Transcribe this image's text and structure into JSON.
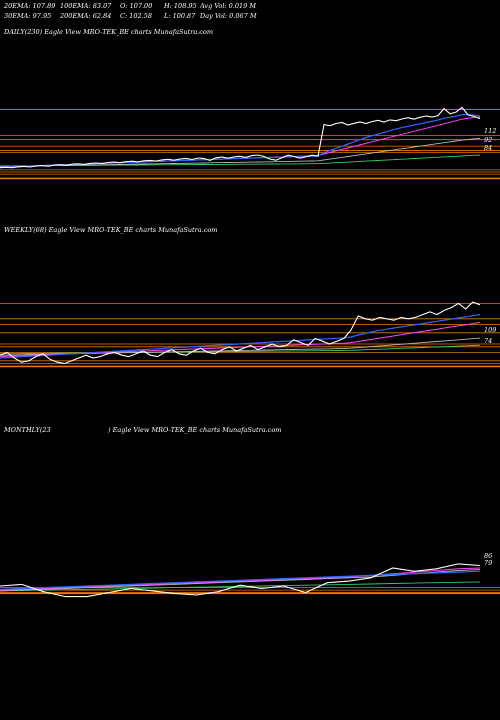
{
  "header": {
    "row1": {
      "ema20": "20EMA: 107.89",
      "ema100": "100EMA: 83.07",
      "open": "O: 107.00",
      "high": "H: 108.95",
      "avg_vol": "Avg Vol: 0.019 M"
    },
    "row2": {
      "ema30": "30EMA: 97.95",
      "ema200": "200EMA: 62.84",
      "close": "C: 102.58",
      "low": "L: 100.87",
      "day_vol": "Day Vol: 0.067 M"
    }
  },
  "panels": {
    "daily": {
      "title": "DAILY(230) Eagle   View  MRO-TEK_BE charts MunafaSutra.com"
    },
    "weekly": {
      "title": "WEEKLY(68) Eagle   View  MRO-TEK_BE charts MunafaSutra.com"
    },
    "monthly": {
      "title": "MONTHLY(23",
      "title_rest": ") Eagle   View  MRO-TEK_BE charts MunafaSutra.com"
    }
  },
  "colors": {
    "background": "#000000",
    "price": "#ffffff",
    "ema_blue": "#3366ff",
    "ema_magenta": "#ff44ff",
    "ema_grey": "#b8b8b8",
    "ema_green": "#33cc66",
    "support_orange": "#e07800"
  },
  "chart_data": [
    {
      "type": "line",
      "name": "daily",
      "ylim": [
        70,
        135
      ],
      "x": [
        0,
        1,
        2,
        3,
        4,
        5,
        6,
        7,
        8,
        9,
        10,
        11,
        12,
        13,
        14,
        15,
        16,
        17,
        18,
        19,
        20,
        21,
        22,
        23,
        24,
        25,
        26,
        27,
        28,
        29,
        30,
        31,
        32,
        33,
        34,
        35,
        36,
        37,
        38,
        39,
        40,
        41,
        42,
        43,
        44,
        45,
        46,
        47,
        48,
        49,
        50,
        51,
        52,
        53,
        54,
        55,
        56,
        57,
        58,
        59,
        60,
        61,
        62,
        63,
        64,
        65,
        66,
        67,
        68,
        69,
        70,
        71,
        72,
        73,
        74,
        75,
        76,
        77,
        78,
        79,
        80
      ],
      "series": [
        {
          "values": [
            85,
            85.2,
            85,
            85.4,
            85.6,
            85.3,
            85.8,
            86,
            85.7,
            86.2,
            86.4,
            86.1,
            86.6,
            86.8,
            86.5,
            87,
            87.2,
            86.9,
            87.4,
            87.6,
            87.3,
            87.8,
            88,
            87.7,
            88.2,
            88.4,
            88.1,
            88.6,
            88.9,
            88.5,
            89,
            89.3,
            88.8,
            89.5,
            89.2,
            88.4,
            89.6,
            89.9,
            89.4,
            90,
            90.3,
            89.8,
            90.6,
            90.9,
            90.2,
            89,
            88.5,
            89.6,
            90.8,
            90.2,
            89.4,
            90.1,
            90.8,
            90.4,
            105,
            104.5,
            105.5,
            106,
            104.8,
            105.6,
            106.2,
            105.5,
            106.4,
            107,
            106.2,
            107.2,
            106.8,
            107.6,
            108.2,
            107.5,
            108.4,
            109,
            108.5,
            109.2,
            112.5,
            110,
            110.8,
            113,
            109.5,
            108.8,
            107.8
          ]
        },
        {
          "values": [
            85.2,
            85.3,
            85.4,
            85.5,
            85.6,
            85.7,
            85.8,
            85.9,
            86,
            86.1,
            86.2,
            86.3,
            86.4,
            86.5,
            86.6,
            86.8,
            86.9,
            87,
            87.1,
            87.2,
            87.3,
            87.4,
            87.5,
            87.6,
            87.7,
            87.8,
            87.9,
            88,
            88.1,
            88.2,
            88.3,
            88.4,
            88.5,
            88.6,
            88.7,
            88.8,
            88.9,
            89,
            89.1,
            89.2,
            89.3,
            89.4,
            89.5,
            89.6,
            89.7,
            89.8,
            89.8,
            89.9,
            90,
            90.1,
            90.1,
            90.2,
            90.3,
            90.4,
            92,
            93,
            94,
            95,
            96,
            97,
            98,
            99,
            99.8,
            100.6,
            101.4,
            102.2,
            102.9,
            103.6,
            104.2,
            104.8,
            105.4,
            106,
            106.6,
            107.2,
            108,
            108.4,
            108.9,
            109.6,
            109.6,
            109.4,
            109
          ]
        },
        {
          "values": [
            85.3,
            85.4,
            85.5,
            85.6,
            85.7,
            85.8,
            85.9,
            86,
            86.1,
            86.2,
            86.3,
            86.4,
            86.5,
            86.6,
            86.7,
            86.8,
            86.9,
            87,
            87.1,
            87.2,
            87.3,
            87.4,
            87.5,
            87.6,
            87.7,
            87.8,
            87.9,
            88,
            88.1,
            88.2,
            88.3,
            88.4,
            88.5,
            88.6,
            88.7,
            88.8,
            88.9,
            89,
            89.1,
            89.2,
            89.3,
            89.4,
            89.5,
            89.6,
            89.7,
            89.8,
            89.9,
            90,
            90.1,
            90.2,
            90.3,
            90.4,
            90.5,
            90.6,
            91.4,
            92.1,
            92.8,
            93.5,
            94.2,
            94.9,
            95.6,
            96.3,
            97,
            97.7,
            98.4,
            99.1,
            99.8,
            100.5,
            101.2,
            101.9,
            102.6,
            103.3,
            104,
            104.7,
            105.4,
            106.1,
            106.8,
            107.5,
            108,
            108.3,
            108.5
          ]
        },
        {
          "values": [
            85.5,
            85.55,
            85.6,
            85.65,
            85.7,
            85.75,
            85.8,
            85.85,
            85.9,
            85.95,
            86,
            86.05,
            86.1,
            86.15,
            86.2,
            86.25,
            86.3,
            86.35,
            86.4,
            86.45,
            86.5,
            86.55,
            86.6,
            86.65,
            86.7,
            86.75,
            86.8,
            86.85,
            86.9,
            86.95,
            87,
            87.05,
            87.1,
            87.15,
            87.2,
            87.25,
            87.3,
            87.35,
            87.4,
            87.45,
            87.5,
            87.55,
            87.6,
            87.65,
            87.7,
            87.75,
            87.8,
            87.85,
            87.9,
            87.95,
            88,
            88.05,
            88.1,
            88.2,
            88.6,
            89,
            89.4,
            89.8,
            90.2,
            90.6,
            91,
            91.4,
            91.8,
            92.2,
            92.6,
            93,
            93.4,
            93.8,
            94.2,
            94.6,
            95,
            95.4,
            95.8,
            96.2,
            96.6,
            97,
            97.4,
            97.8,
            98.1,
            98.4,
            98.6
          ]
        },
        {
          "values": [
            85.8,
            85.82,
            85.84,
            85.86,
            85.88,
            85.9,
            85.92,
            85.94,
            85.96,
            85.98,
            86,
            86.02,
            86.04,
            86.06,
            86.08,
            86.1,
            86.12,
            86.14,
            86.16,
            86.18,
            86.2,
            86.22,
            86.24,
            86.26,
            86.28,
            86.3,
            86.32,
            86.34,
            86.36,
            86.38,
            86.4,
            86.42,
            86.44,
            86.46,
            86.48,
            86.5,
            86.52,
            86.54,
            86.56,
            86.58,
            86.6,
            86.62,
            86.64,
            86.66,
            86.68,
            86.7,
            86.72,
            86.74,
            86.76,
            86.78,
            86.8,
            86.82,
            86.84,
            86.86,
            87,
            87.15,
            87.3,
            87.45,
            87.6,
            87.75,
            87.9,
            88.05,
            88.2,
            88.35,
            88.5,
            88.65,
            88.8,
            88.95,
            89.1,
            89.25,
            89.4,
            89.55,
            89.7,
            89.85,
            90,
            90.15,
            90.3,
            90.45,
            90.6,
            90.75,
            90.9
          ]
        }
      ],
      "hlines": [
        112,
        100,
        98,
        95,
        93,
        92,
        84,
        83,
        82,
        80
      ],
      "tick_labels": [
        "112",
        "92",
        "84"
      ]
    },
    {
      "type": "line",
      "name": "weekly",
      "ylim": [
        40,
        140
      ],
      "x": [
        0,
        1,
        2,
        3,
        4,
        5,
        6,
        7,
        8,
        9,
        10,
        11,
        12,
        13,
        14,
        15,
        16,
        17,
        18,
        19,
        20,
        21,
        22,
        23,
        24,
        25,
        26,
        27,
        28,
        29,
        30,
        31,
        32,
        33,
        34,
        35,
        36,
        37,
        38,
        39,
        40,
        41,
        42,
        43,
        44,
        45,
        46,
        47,
        48,
        49,
        50,
        51,
        52,
        53,
        54,
        55,
        56,
        57,
        58,
        59,
        60,
        61,
        62,
        63,
        64,
        65,
        66,
        67
      ],
      "series": [
        {
          "values": [
            72,
            74,
            70,
            67,
            68,
            71,
            73,
            69,
            67,
            66,
            68,
            70,
            72,
            70,
            71,
            73,
            74,
            72,
            71,
            73,
            75,
            72,
            71,
            74,
            76,
            73,
            72,
            75,
            77,
            74,
            73,
            76,
            78,
            75,
            77,
            79,
            76,
            78,
            80,
            78,
            79,
            83,
            81,
            79,
            84,
            82,
            80,
            82,
            84,
            90,
            100,
            98,
            97,
            99,
            98,
            97,
            99,
            98,
            99,
            101,
            103,
            101,
            104,
            106,
            109,
            105,
            110,
            108
          ]
        },
        {
          "values": [
            70,
            70.3,
            70.6,
            70.9,
            71.2,
            71.5,
            71.8,
            72.1,
            72.4,
            72.7,
            73,
            73.3,
            73.6,
            73.9,
            74.2,
            74.5,
            74.8,
            75.1,
            75.4,
            75.7,
            76,
            76.3,
            76.6,
            76.9,
            77.2,
            77.5,
            77.8,
            78.1,
            78.4,
            78.7,
            79,
            79.3,
            79.6,
            79.9,
            80.2,
            80.5,
            80.8,
            81.1,
            81.4,
            81.7,
            82,
            82.3,
            82.6,
            82.9,
            83.2,
            83.5,
            83.8,
            84.1,
            84.4,
            85,
            86.4,
            87.6,
            88.8,
            89.8,
            90.6,
            91.4,
            92.2,
            93,
            93.8,
            94.6,
            95.4,
            96.2,
            97,
            97.8,
            98.6,
            99.4,
            100.2,
            101
          ]
        },
        {
          "values": [
            71,
            71.2,
            71.4,
            71.6,
            71.8,
            72,
            72.2,
            72.4,
            72.6,
            72.8,
            73,
            73.2,
            73.4,
            73.6,
            73.8,
            74,
            74.2,
            74.4,
            74.6,
            74.8,
            75,
            75.2,
            75.4,
            75.6,
            75.8,
            76,
            76.2,
            76.4,
            76.6,
            76.8,
            77,
            77.2,
            77.4,
            77.6,
            77.8,
            78,
            78.2,
            78.4,
            78.6,
            78.8,
            79,
            79.2,
            79.4,
            79.6,
            79.8,
            80,
            80.2,
            80.4,
            80.6,
            81,
            81.8,
            82.6,
            83.4,
            84.2,
            85,
            85.8,
            86.6,
            87.4,
            88.2,
            89,
            89.8,
            90.6,
            91.4,
            92.2,
            93,
            93.8,
            94.6,
            95.4
          ]
        },
        {
          "values": [
            72,
            72.1,
            72.2,
            72.3,
            72.4,
            72.5,
            72.6,
            72.7,
            72.8,
            72.9,
            73,
            73.1,
            73.2,
            73.3,
            73.4,
            73.5,
            73.6,
            73.7,
            73.8,
            73.9,
            74,
            74.1,
            74.2,
            74.3,
            74.4,
            74.5,
            74.6,
            74.7,
            74.8,
            74.9,
            75,
            75.1,
            75.2,
            75.3,
            75.4,
            75.5,
            75.6,
            75.7,
            75.8,
            75.9,
            76,
            76.1,
            76.2,
            76.3,
            76.4,
            76.5,
            76.6,
            76.7,
            76.8,
            77,
            77.4,
            77.8,
            78.2,
            78.6,
            79,
            79.4,
            79.8,
            80.2,
            80.6,
            81,
            81.4,
            81.8,
            82.2,
            82.6,
            83,
            83.4,
            83.8,
            84.2
          ]
        },
        {
          "values": [
            73,
            73.05,
            73.1,
            73.15,
            73.2,
            73.25,
            73.3,
            73.35,
            73.4,
            73.45,
            73.5,
            73.55,
            73.6,
            73.65,
            73.7,
            73.75,
            73.8,
            73.85,
            73.9,
            73.95,
            74,
            74.05,
            74.1,
            74.15,
            74.2,
            74.25,
            74.3,
            74.35,
            74.4,
            74.45,
            74.5,
            74.55,
            74.6,
            74.65,
            74.7,
            74.75,
            74.8,
            74.85,
            74.9,
            74.95,
            75,
            75.05,
            75.1,
            75.15,
            75.2,
            75.25,
            75.3,
            75.35,
            75.4,
            75.5,
            75.7,
            75.9,
            76.1,
            76.3,
            76.5,
            76.7,
            76.9,
            77.1,
            77.3,
            77.5,
            77.7,
            77.9,
            78.1,
            78.3,
            78.5,
            78.7,
            78.9,
            79.1
          ]
        }
      ],
      "hlines": [
        109,
        98,
        94,
        88,
        80,
        78,
        74,
        68,
        66,
        64
      ],
      "tick_labels": [
        "109",
        "74"
      ]
    },
    {
      "type": "line",
      "name": "monthly",
      "ylim": [
        20,
        240
      ],
      "x": [
        0,
        1,
        2,
        3,
        4,
        5,
        6,
        7,
        8,
        9,
        10,
        11,
        12,
        13,
        14,
        15,
        16,
        17,
        18,
        19,
        20,
        21,
        22
      ],
      "series": [
        {
          "values": [
            86,
            88,
            79,
            73,
            73,
            78,
            83,
            80,
            77,
            75,
            79,
            87,
            83,
            86,
            78,
            90,
            92,
            96,
            108,
            104,
            107,
            113,
            111
          ]
        },
        {
          "values": [
            82,
            83,
            84,
            85,
            86,
            87,
            88,
            89,
            90,
            91,
            92,
            93,
            94,
            95,
            96,
            97,
            98,
            99,
            100,
            101,
            102,
            103,
            104
          ]
        },
        {
          "values": [
            81,
            82,
            83,
            84,
            85,
            86,
            87,
            88,
            89,
            90,
            91,
            92,
            93,
            94,
            95,
            96,
            97,
            99,
            101,
            103,
            105,
            107,
            108
          ]
        },
        {
          "values": [
            80,
            81,
            82,
            83,
            84,
            85,
            86,
            87,
            88,
            89,
            90,
            91,
            92,
            93,
            94,
            95,
            96,
            97,
            99,
            101,
            103,
            105,
            106
          ]
        },
        {
          "values": [
            80,
            80.5,
            81,
            81.5,
            82,
            82.5,
            83,
            83.5,
            84,
            84.5,
            85,
            85.5,
            86,
            86.5,
            87,
            87.5,
            88,
            88.5,
            89,
            89.5,
            90,
            90.5,
            91
          ]
        }
      ],
      "hlines": [
        84,
        81,
        78,
        77
      ],
      "tick_labels": [
        "86",
        "79"
      ]
    }
  ]
}
